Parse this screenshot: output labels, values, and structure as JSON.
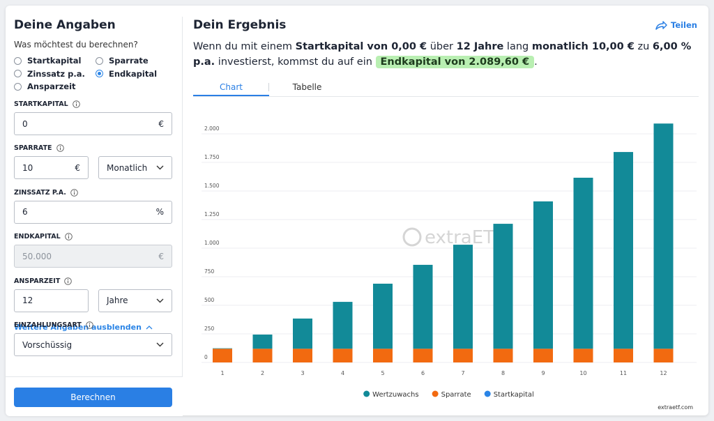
{
  "form": {
    "title": "Deine Angaben",
    "question": "Was möchtest du berechnen?",
    "options": [
      "Startkapital",
      "Sparrate",
      "Zinssatz p.a.",
      "Endkapital",
      "Ansparzeit"
    ],
    "selected": 3,
    "fields": [
      {
        "label": "STARTKAPITAL",
        "value": "0",
        "unit": "€"
      },
      {
        "label": "SPARRATE",
        "value": "10",
        "unit": "€",
        "select": "Monatlich"
      },
      {
        "label": "ZINSSATZ P.A.",
        "value": "6",
        "unit": "%"
      },
      {
        "label": "ENDKAPITAL",
        "value": "50.000",
        "unit": "€",
        "disabled": true
      },
      {
        "label": "ANSPARZEIT",
        "value": "12",
        "select": "Jahre"
      },
      {
        "label": "EINZAHLUNGSART",
        "select": "Vorschüssig"
      }
    ],
    "toggle": "Weitere Angaben ausblenden",
    "button": "Berechnen"
  },
  "result": {
    "title": "Dein Ergebnis",
    "share": "Teilen",
    "sentence": [
      {
        "text": "Wenn du mit einem "
      },
      {
        "text": "Startkapital von 0,00 €",
        "bold": true
      },
      {
        "text": " über "
      },
      {
        "text": "12 Jahre",
        "bold": true
      },
      {
        "text": " lang "
      },
      {
        "text": "monatlich 10,00 €",
        "bold": true
      },
      {
        "text": " zu "
      },
      {
        "text": "6,00 % p.a.",
        "bold": true
      },
      {
        "text": " investierst, kommst du auf ein "
      },
      {
        "text": "Endkapital von 2.089,60 €",
        "bold": true,
        "highlight": true
      },
      {
        "text": "."
      }
    ],
    "tabs": [
      "Chart",
      "Tabelle"
    ],
    "active_tab": 0,
    "watermark": "extraETF",
    "source": "extraetf.com"
  },
  "chart_data": {
    "type": "stacked_bar",
    "categories": [
      "1",
      "2",
      "3",
      "4",
      "5",
      "6",
      "7",
      "8",
      "9",
      "10",
      "11",
      "12"
    ],
    "series": [
      {
        "name": "Wertzuwachs",
        "color": "#128a98",
        "values": [
          4,
          124,
          264,
          410,
          569,
          734,
          910,
          1093,
          1289,
          1496,
          1721,
          1970
        ]
      },
      {
        "name": "Sparrate",
        "color": "#f26a10",
        "values": [
          120,
          120,
          120,
          120,
          120,
          120,
          120,
          120,
          120,
          120,
          120,
          120
        ]
      },
      {
        "name": "Startkapital",
        "color": "#2a84e6",
        "values": [
          0,
          0,
          0,
          0,
          0,
          0,
          0,
          0,
          0,
          0,
          0,
          0
        ]
      }
    ],
    "ylim": [
      0,
      2000
    ],
    "yticks": [
      0,
      250,
      500,
      750,
      {
        "value": 1000,
        "label": "1.000"
      },
      {
        "value": 1250,
        "label": "1.250"
      },
      {
        "value": 1500,
        "label": "1.500"
      },
      {
        "value": 1750,
        "label": "1.750"
      },
      {
        "value": 2000,
        "label": "2.000"
      }
    ],
    "grid": true,
    "legend": "bottom"
  }
}
